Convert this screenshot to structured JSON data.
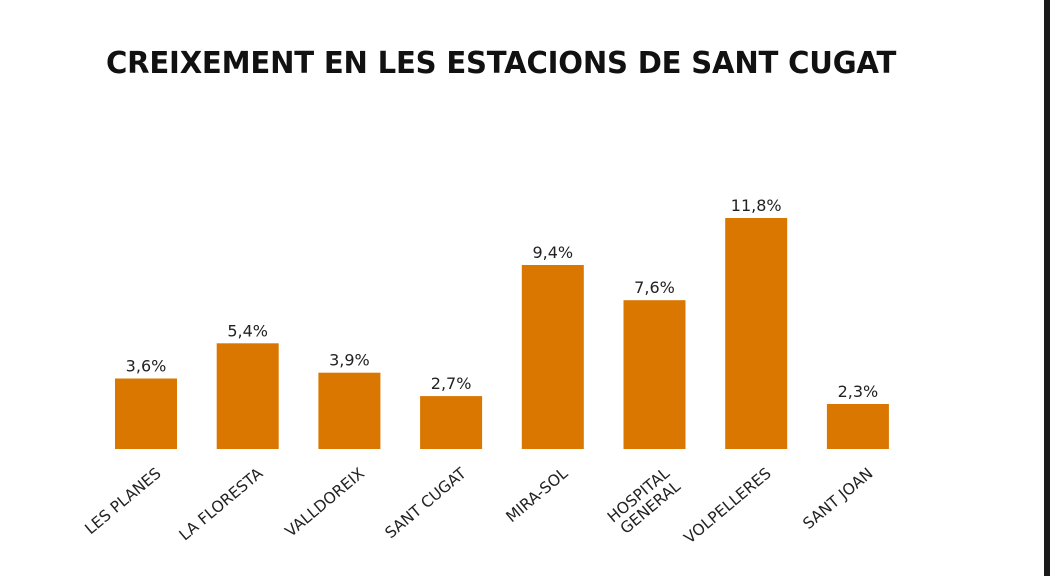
{
  "chart_data": {
    "type": "bar",
    "title": "CREIXEMENT EN LES ESTACIONS DE SANT CUGAT",
    "categories": [
      "LES PLANES",
      "LA FLORESTA",
      "VALLDOREIX",
      "SANT CUGAT",
      "MIRA-SOL",
      "HOSPITAL GENERAL",
      "VOLPELLERES",
      "SANT JOAN"
    ],
    "values": [
      3.6,
      5.4,
      3.9,
      2.7,
      9.4,
      7.6,
      11.8,
      2.3
    ],
    "value_labels": [
      "3,6%",
      "5,4%",
      "3,9%",
      "2,7%",
      "9,4%",
      "7,6%",
      "11,8%",
      "2,3%"
    ],
    "unit": "%",
    "xlabel": "",
    "ylabel": "",
    "ylim": [
      0,
      11.8
    ],
    "grid": false,
    "legend": "none",
    "bar_color": "#d97700"
  }
}
